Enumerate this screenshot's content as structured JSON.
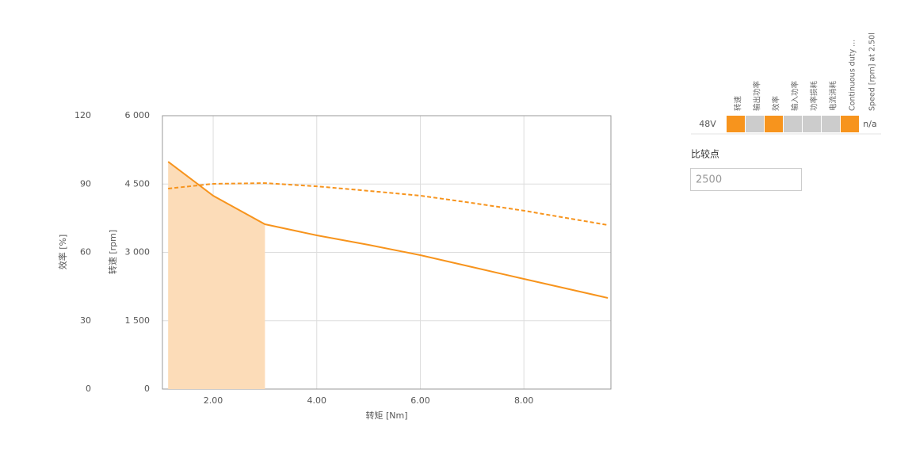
{
  "chart_data": {
    "type": "line",
    "x_label": "转矩 [Nm]",
    "y_label": "转速 [rpm]",
    "y2_label": "效率 [%]",
    "x": [
      1.13,
      2,
      3,
      4,
      5,
      6,
      7,
      8,
      9.62
    ],
    "series": [
      {
        "name": "转速",
        "color": "#f7941d",
        "dash": false,
        "values": [
          4991,
          4243,
          3617,
          3374,
          3165,
          2939,
          2678,
          2417,
          2000
        ]
      },
      {
        "name": "效率",
        "color": "#f7941d",
        "dash": true,
        "axis": "y2",
        "values": [
          88,
          90.1,
          90.4,
          89,
          87,
          84.9,
          81.7,
          78.3,
          72
        ]
      }
    ],
    "highlight_range": [
      1.13,
      3.0
    ],
    "highlight_color": "#fcdcb8",
    "xlim": [
      1.02,
      9.68
    ],
    "xticks": [
      {
        "value": 2,
        "label": "2.00"
      },
      {
        "value": 4,
        "label": "4.00"
      },
      {
        "value": 6,
        "label": "6.00"
      },
      {
        "value": 8,
        "label": "8.00"
      }
    ],
    "ylim": [
      0,
      6000
    ],
    "yticks": [
      0,
      {
        "value": 1500,
        "label": "1 500"
      },
      {
        "value": 3000,
        "label": "3 000"
      },
      {
        "value": 4500,
        "label": "4 500"
      },
      {
        "value": 6000,
        "label": "6 000"
      }
    ],
    "y2lim": [
      0,
      120
    ],
    "y2ticks": [
      0,
      30,
      60,
      90,
      120
    ],
    "grid": true
  },
  "legend_table": {
    "row_label": "48V",
    "value": "n/a",
    "columns": [
      {
        "label": "转速",
        "color": "#f7941d"
      },
      {
        "label": "输出功率",
        "color": "#cccccc"
      },
      {
        "label": "效率",
        "color": "#f7941d"
      },
      {
        "label": "输入功率",
        "color": "#cccccc"
      },
      {
        "label": "功率损耗",
        "color": "#cccccc"
      },
      {
        "label": "电流消耗",
        "color": "#cccccc"
      },
      {
        "label": "Continuous duty ...",
        "color": "#f7941d"
      },
      {
        "label": "Speed [rpm] at 2.50l"
      }
    ]
  },
  "compare": {
    "label": "比较点",
    "value": 2500
  }
}
